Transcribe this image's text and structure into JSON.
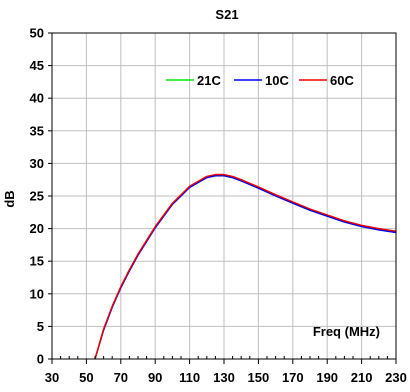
{
  "chart_data": {
    "type": "line",
    "title": "S21",
    "xlabel": "Freq (MHz)",
    "ylabel": "dB",
    "xlim": [
      30,
      230
    ],
    "ylim": [
      0,
      50
    ],
    "xticks": [
      30,
      50,
      70,
      90,
      110,
      130,
      150,
      170,
      190,
      210,
      230
    ],
    "yticks": [
      0,
      5,
      10,
      15,
      20,
      25,
      30,
      35,
      40,
      45,
      50
    ],
    "grid": true,
    "legend_position": "top-right",
    "series": [
      {
        "name": "21C",
        "color": "#00ee00",
        "x": [
          55,
          60,
          65,
          70,
          75,
          80,
          90,
          100,
          110,
          120,
          125,
          130,
          135,
          140,
          150,
          160,
          170,
          180,
          190,
          200,
          210,
          220,
          230
        ],
        "y": [
          0,
          4.5,
          8.0,
          11.0,
          13.6,
          16.0,
          20.2,
          23.8,
          26.4,
          27.9,
          28.2,
          28.2,
          27.9,
          27.4,
          26.3,
          25.1,
          24.0,
          22.9,
          22.0,
          21.1,
          20.4,
          19.9,
          19.5
        ]
      },
      {
        "name": "10C",
        "color": "#0000ee",
        "x": [
          55,
          60,
          65,
          70,
          75,
          80,
          90,
          100,
          110,
          120,
          125,
          130,
          135,
          140,
          150,
          160,
          170,
          180,
          190,
          200,
          210,
          220,
          230
        ],
        "y": [
          0,
          4.4,
          7.9,
          10.9,
          13.5,
          15.9,
          20.1,
          23.7,
          26.3,
          27.8,
          28.1,
          28.1,
          27.8,
          27.3,
          26.2,
          25.0,
          23.9,
          22.8,
          21.9,
          21.0,
          20.3,
          19.8,
          19.4
        ]
      },
      {
        "name": "60C",
        "color": "#ee0000",
        "x": [
          55,
          60,
          65,
          70,
          75,
          80,
          90,
          100,
          110,
          120,
          125,
          130,
          135,
          140,
          150,
          160,
          170,
          180,
          190,
          200,
          210,
          220,
          230
        ],
        "y": [
          0,
          4.6,
          8.1,
          11.1,
          13.7,
          16.1,
          20.3,
          23.9,
          26.5,
          28.0,
          28.3,
          28.3,
          28.0,
          27.5,
          26.4,
          25.2,
          24.1,
          23.0,
          22.1,
          21.2,
          20.5,
          20.0,
          19.6
        ]
      }
    ]
  }
}
